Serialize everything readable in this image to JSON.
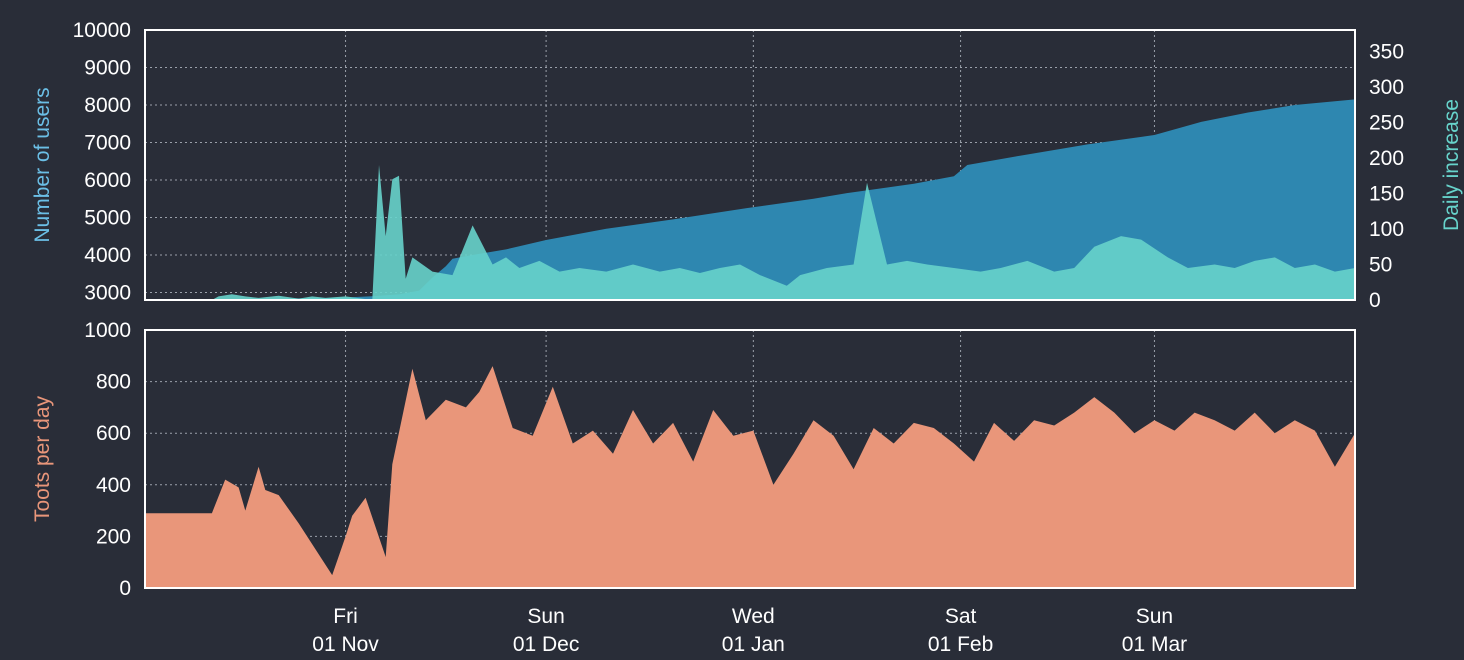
{
  "colors": {
    "background": "#292d38",
    "users_area": "#2e87b0",
    "daily_area": "#67d3cb",
    "toots_area": "#e9967a",
    "users_label": "#6bbfe6",
    "daily_label": "#67d3cb",
    "toots_label": "#e9967a",
    "frame": "#ffffff",
    "grid": "#9aa0aa"
  },
  "x_axis": {
    "start_date": "2019-10-02",
    "end_date": "2020-03-31",
    "ticks": [
      {
        "date": "2019-11-01",
        "weekday": "Fri",
        "label": "01 Nov"
      },
      {
        "date": "2019-12-01",
        "weekday": "Sun",
        "label": "01 Dec"
      },
      {
        "date": "2020-01-01",
        "weekday": "Wed",
        "label": "01 Jan"
      },
      {
        "date": "2020-02-01",
        "weekday": "Sat",
        "label": "01 Feb"
      },
      {
        "date": "2020-03-01",
        "weekday": "Sun",
        "label": "01 Mar"
      }
    ]
  },
  "chart_data": [
    {
      "type": "area",
      "ylabel": "Number of users",
      "y2label": "Daily increase",
      "ylim": [
        2800,
        10000
      ],
      "y2lim": [
        0,
        380
      ],
      "yticks": [
        3000,
        4000,
        5000,
        6000,
        7000,
        8000,
        9000,
        10000
      ],
      "y2ticks": [
        0,
        50,
        100,
        150,
        200,
        250,
        300,
        350
      ],
      "grid": true,
      "series": [
        {
          "axis": "left",
          "points": [
            [
              "2019-10-02",
              2820
            ],
            [
              "2019-10-20",
              2830
            ],
            [
              "2019-10-31",
              2860
            ],
            [
              "2019-11-05",
              2900
            ],
            [
              "2019-11-09",
              2950
            ],
            [
              "2019-11-12",
              3050
            ],
            [
              "2019-11-14",
              3400
            ],
            [
              "2019-11-16",
              3700
            ],
            [
              "2019-11-17",
              3900
            ],
            [
              "2019-11-20",
              4000
            ],
            [
              "2019-11-25",
              4150
            ],
            [
              "2019-12-01",
              4400
            ],
            [
              "2019-12-10",
              4700
            ],
            [
              "2019-12-20",
              4950
            ],
            [
              "2019-12-31",
              5250
            ],
            [
              "2020-01-10",
              5500
            ],
            [
              "2020-01-15",
              5650
            ],
            [
              "2020-01-25",
              5900
            ],
            [
              "2020-01-31",
              6100
            ],
            [
              "2020-02-02",
              6400
            ],
            [
              "2020-02-10",
              6650
            ],
            [
              "2020-02-20",
              6950
            ],
            [
              "2020-03-01",
              7200
            ],
            [
              "2020-03-08",
              7550
            ],
            [
              "2020-03-15",
              7800
            ],
            [
              "2020-03-22",
              8000
            ],
            [
              "2020-03-31",
              8150
            ]
          ]
        },
        {
          "axis": "right",
          "points": [
            [
              "2019-10-02",
              0
            ],
            [
              "2019-10-12",
              0
            ],
            [
              "2019-10-13",
              5
            ],
            [
              "2019-10-15",
              8
            ],
            [
              "2019-10-17",
              5
            ],
            [
              "2019-10-19",
              3
            ],
            [
              "2019-10-22",
              6
            ],
            [
              "2019-10-25",
              2
            ],
            [
              "2019-10-27",
              5
            ],
            [
              "2019-10-29",
              3
            ],
            [
              "2019-11-01",
              5
            ],
            [
              "2019-11-05",
              0
            ],
            [
              "2019-11-06",
              190
            ],
            [
              "2019-11-07",
              90
            ],
            [
              "2019-11-08",
              170
            ],
            [
              "2019-11-09",
              175
            ],
            [
              "2019-11-10",
              30
            ],
            [
              "2019-11-11",
              60
            ],
            [
              "2019-11-14",
              40
            ],
            [
              "2019-11-17",
              35
            ],
            [
              "2019-11-20",
              105
            ],
            [
              "2019-11-23",
              50
            ],
            [
              "2019-11-25",
              60
            ],
            [
              "2019-11-27",
              45
            ],
            [
              "2019-11-30",
              55
            ],
            [
              "2019-12-03",
              40
            ],
            [
              "2019-12-06",
              45
            ],
            [
              "2019-12-10",
              40
            ],
            [
              "2019-12-14",
              50
            ],
            [
              "2019-12-18",
              40
            ],
            [
              "2019-12-21",
              45
            ],
            [
              "2019-12-24",
              38
            ],
            [
              "2019-12-27",
              45
            ],
            [
              "2019-12-30",
              50
            ],
            [
              "2020-01-02",
              35
            ],
            [
              "2020-01-06",
              20
            ],
            [
              "2020-01-08",
              35
            ],
            [
              "2020-01-12",
              45
            ],
            [
              "2020-01-16",
              50
            ],
            [
              "2020-01-18",
              165
            ],
            [
              "2020-01-21",
              50
            ],
            [
              "2020-01-24",
              55
            ],
            [
              "2020-01-27",
              50
            ],
            [
              "2020-01-31",
              45
            ],
            [
              "2020-02-04",
              40
            ],
            [
              "2020-02-07",
              45
            ],
            [
              "2020-02-11",
              55
            ],
            [
              "2020-02-15",
              40
            ],
            [
              "2020-02-18",
              45
            ],
            [
              "2020-02-21",
              75
            ],
            [
              "2020-02-25",
              90
            ],
            [
              "2020-02-28",
              85
            ],
            [
              "2020-03-03",
              60
            ],
            [
              "2020-03-06",
              45
            ],
            [
              "2020-03-10",
              50
            ],
            [
              "2020-03-13",
              45
            ],
            [
              "2020-03-16",
              55
            ],
            [
              "2020-03-19",
              60
            ],
            [
              "2020-03-22",
              45
            ],
            [
              "2020-03-25",
              50
            ],
            [
              "2020-03-28",
              40
            ],
            [
              "2020-03-31",
              45
            ]
          ]
        }
      ]
    },
    {
      "type": "area",
      "ylabel": "Toots per day",
      "ylim": [
        0,
        1000
      ],
      "yticks": [
        0,
        200,
        400,
        600,
        800,
        1000
      ],
      "grid": true,
      "series": [
        {
          "points": [
            [
              "2019-10-02",
              290
            ],
            [
              "2019-10-12",
              290
            ],
            [
              "2019-10-14",
              420
            ],
            [
              "2019-10-16",
              390
            ],
            [
              "2019-10-17",
              300
            ],
            [
              "2019-10-19",
              470
            ],
            [
              "2019-10-20",
              380
            ],
            [
              "2019-10-22",
              360
            ],
            [
              "2019-10-25",
              250
            ],
            [
              "2019-10-30",
              50
            ],
            [
              "2019-11-01",
              200
            ],
            [
              "2019-11-02",
              280
            ],
            [
              "2019-11-04",
              350
            ],
            [
              "2019-11-07",
              120
            ],
            [
              "2019-11-08",
              480
            ],
            [
              "2019-11-11",
              850
            ],
            [
              "2019-11-13",
              650
            ],
            [
              "2019-11-16",
              730
            ],
            [
              "2019-11-19",
              700
            ],
            [
              "2019-11-21",
              760
            ],
            [
              "2019-11-23",
              860
            ],
            [
              "2019-11-26",
              620
            ],
            [
              "2019-11-29",
              590
            ],
            [
              "2019-12-02",
              780
            ],
            [
              "2019-12-05",
              560
            ],
            [
              "2019-12-08",
              610
            ],
            [
              "2019-12-11",
              520
            ],
            [
              "2019-12-14",
              690
            ],
            [
              "2019-12-17",
              560
            ],
            [
              "2019-12-20",
              640
            ],
            [
              "2019-12-23",
              490
            ],
            [
              "2019-12-26",
              690
            ],
            [
              "2019-12-29",
              590
            ],
            [
              "2020-01-01",
              610
            ],
            [
              "2020-01-04",
              400
            ],
            [
              "2020-01-07",
              520
            ],
            [
              "2020-01-10",
              650
            ],
            [
              "2020-01-13",
              590
            ],
            [
              "2020-01-16",
              460
            ],
            [
              "2020-01-19",
              620
            ],
            [
              "2020-01-22",
              560
            ],
            [
              "2020-01-25",
              640
            ],
            [
              "2020-01-28",
              620
            ],
            [
              "2020-01-31",
              560
            ],
            [
              "2020-02-03",
              490
            ],
            [
              "2020-02-06",
              640
            ],
            [
              "2020-02-09",
              570
            ],
            [
              "2020-02-12",
              650
            ],
            [
              "2020-02-15",
              630
            ],
            [
              "2020-02-18",
              680
            ],
            [
              "2020-02-21",
              740
            ],
            [
              "2020-02-24",
              680
            ],
            [
              "2020-02-27",
              600
            ],
            [
              "2020-03-01",
              650
            ],
            [
              "2020-03-04",
              610
            ],
            [
              "2020-03-07",
              680
            ],
            [
              "2020-03-10",
              650
            ],
            [
              "2020-03-13",
              610
            ],
            [
              "2020-03-16",
              680
            ],
            [
              "2020-03-19",
              600
            ],
            [
              "2020-03-22",
              650
            ],
            [
              "2020-03-25",
              610
            ],
            [
              "2020-03-28",
              470
            ],
            [
              "2020-03-31",
              600
            ]
          ]
        }
      ]
    }
  ]
}
